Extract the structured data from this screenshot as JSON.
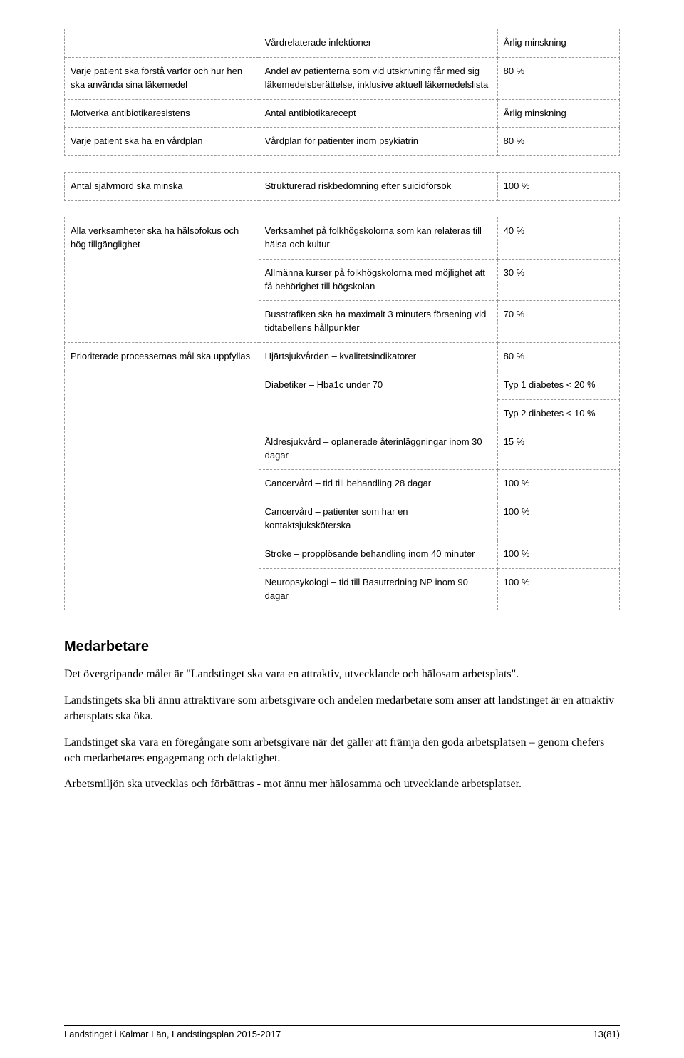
{
  "tables": {
    "t1": {
      "rows": [
        {
          "a": "",
          "b": "Vårdrelaterade infektioner",
          "c": "Årlig minskning"
        },
        {
          "a": "Varje patient ska förstå varför och hur hen ska använda sina läkemedel",
          "b": "Andel av patienterna som vid utskrivning får med sig läkemedelsberättelse, inklusive aktuell läkemedelslista",
          "c": "80 %"
        },
        {
          "a": "Motverka antibiotikaresistens",
          "b": "Antal antibiotikarecept",
          "c": "Årlig minskning"
        },
        {
          "a": "Varje patient ska ha en vårdplan",
          "b": "Vårdplan för patienter inom psykiatrin",
          "c": "80 %"
        }
      ]
    },
    "t2": {
      "rows": [
        {
          "a": "Antal självmord ska minska",
          "b": "Strukturerad riskbedömning efter suicidförsök",
          "c": "100 %"
        }
      ]
    },
    "t3": {
      "rows": [
        {
          "a": "Alla verksamheter ska ha hälsofokus och hög tillgänglighet",
          "b": "Verksamhet på folkhögskolorna som kan relateras till hälsa och kultur",
          "c": "40 %"
        },
        {
          "a": "",
          "b": "Allmänna kurser på folkhögskolorna med möjlighet att få behörighet till högskolan",
          "c": "30 %"
        },
        {
          "a": "",
          "b": "Busstrafiken ska ha maximalt 3 minuters försening vid tidtabellens hållpunkter",
          "c": "70 %"
        },
        {
          "a": "Prioriterade processernas mål ska uppfyllas",
          "b": "Hjärtsjukvården – kvalitetsindikatorer",
          "c": "80 %"
        },
        {
          "a": "",
          "b": "Diabetiker – Hba1c under 70",
          "c": "Typ 1 diabetes < 20 %"
        },
        {
          "a": "",
          "b": "",
          "c": "Typ 2 diabetes < 10 %"
        },
        {
          "a": "",
          "b": "Äldresjukvård – oplanerade återinläggningar inom 30 dagar",
          "c": "15 %"
        },
        {
          "a": "",
          "b": "Cancervård – tid till behandling 28 dagar",
          "c": "100 %"
        },
        {
          "a": "",
          "b": "Cancervård – patienter som har en kontaktsjuksköterska",
          "c": "100 %"
        },
        {
          "a": "",
          "b": "Stroke – propplösande behandling inom 40 minuter",
          "c": "100 %"
        },
        {
          "a": "",
          "b": "Neuropsykologi – tid till Basutredning NP inom 90 dagar",
          "c": "100 %"
        }
      ]
    }
  },
  "section": {
    "heading": "Medarbetare",
    "p1": "Det övergripande målet är \"Landstinget ska vara en attraktiv, utvecklande och hälosam arbetsplats\".",
    "p2": "Landstingets ska bli ännu attraktivare som arbetsgivare och andelen medarbetare som anser att landstinget är en attraktiv arbetsplats ska öka.",
    "p3": "Landstinget ska vara en föregångare som arbetsgivare när det gäller att främja den goda arbetsplatsen – genom chefers och medarbetares engagemang och delaktighet.",
    "p4": "Arbetsmiljön ska utvecklas och förbättras - mot ännu mer hälosamma och utvecklande arbetsplatser."
  },
  "footer": {
    "left": "Landstinget i Kalmar Län, Landstingsplan 2015-2017",
    "right": "13(81)"
  }
}
